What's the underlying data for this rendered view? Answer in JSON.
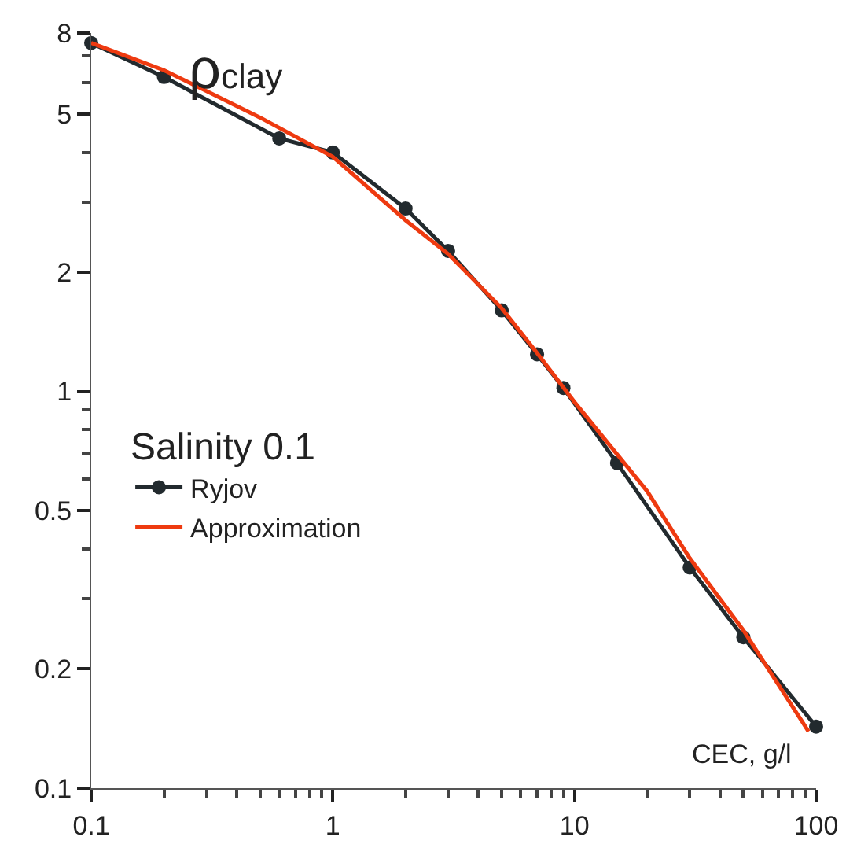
{
  "chart_data": {
    "type": "line",
    "ylabel": "ρ$_{clay}$",
    "xlabel": "CEC, g/l",
    "legend_title": "Salinity 0.1",
    "log": "xy",
    "legend": "left",
    "xlim": [
      0.1,
      100
    ],
    "ylim": [
      0.1,
      8
    ],
    "xticks": [
      0.1,
      {
        "value": 0.2,
        "label": null
      },
      {
        "value": 0.3,
        "label": null
      },
      {
        "value": 0.4,
        "label": null
      },
      {
        "value": 0.5,
        "label": null
      },
      {
        "value": 0.6,
        "label": null
      },
      {
        "value": 0.7,
        "label": null
      },
      {
        "value": 0.8,
        "label": null
      },
      {
        "value": 0.9,
        "label": null
      },
      1,
      {
        "value": 2,
        "label": null
      },
      {
        "value": 3,
        "label": null
      },
      {
        "value": 4,
        "label": null
      },
      {
        "value": 5,
        "label": null
      },
      {
        "value": 6,
        "label": null
      },
      {
        "value": 7,
        "label": null
      },
      {
        "value": 8,
        "label": null
      },
      {
        "value": 9,
        "label": null
      },
      10,
      {
        "value": 20,
        "label": null
      },
      {
        "value": 30,
        "label": null
      },
      {
        "value": 40,
        "label": null
      },
      {
        "value": 50,
        "label": null
      },
      {
        "value": 60,
        "label": null
      },
      {
        "value": 70,
        "label": null
      },
      {
        "value": 80,
        "label": null
      },
      {
        "value": 90,
        "label": null
      },
      100
    ],
    "yticks": [
      0.1,
      0.2,
      {
        "value": 0.3,
        "label": null
      },
      {
        "value": 0.4,
        "label": null
      },
      0.5,
      {
        "value": 0.6,
        "label": null
      },
      {
        "value": 0.7,
        "label": null
      },
      {
        "value": 0.8,
        "label": null
      },
      {
        "value": 0.9,
        "label": null
      },
      1,
      2,
      {
        "value": 3,
        "label": null
      },
      {
        "value": 4,
        "label": null
      },
      5,
      {
        "value": 6,
        "label": null
      },
      {
        "value": 7,
        "label": null
      },
      8
    ],
    "series": [
      {
        "name": "Ryjov",
        "color": "#222a2e",
        "marker": "circle",
        "x": [
          0.1,
          0.2,
          0.6,
          1,
          2,
          3,
          5,
          7,
          9,
          15,
          30,
          50,
          100
        ],
        "values": [
          7.55,
          6.2,
          4.34,
          4.0,
          2.89,
          2.26,
          1.6,
          1.24,
          1.02,
          0.66,
          0.36,
          0.24,
          0.143
        ]
      },
      {
        "name": "Approximation",
        "color": "#ee3a10",
        "marker": "none",
        "x": [
          0.1,
          0.2,
          0.5,
          1,
          2,
          3,
          5,
          7,
          10,
          20,
          30,
          50,
          93
        ],
        "values": [
          7.55,
          6.45,
          4.9,
          3.9,
          2.7,
          2.22,
          1.62,
          1.25,
          0.94,
          0.56,
          0.38,
          0.25,
          0.139
        ]
      }
    ]
  }
}
